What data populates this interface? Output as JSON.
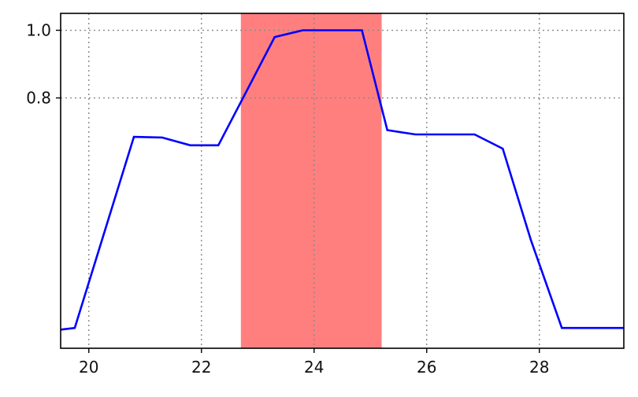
{
  "chart_data": {
    "type": "line",
    "title": "",
    "xlabel": "",
    "ylabel": "",
    "xlim": [
      19.5,
      29.5
    ],
    "ylim": [
      0.06,
      1.05
    ],
    "xticks": [
      20,
      22,
      24,
      26,
      28
    ],
    "xtick_labels": [
      "20",
      "22",
      "24",
      "26",
      "28"
    ],
    "yticks": [
      0.8,
      1.0
    ],
    "ytick_labels": [
      "0.8",
      "1.0"
    ],
    "grid": true,
    "legend": "none",
    "series": [
      {
        "color": "#0000ff",
        "x": [
          19.5,
          19.75,
          20.8,
          21.3,
          21.8,
          22.3,
          22.8,
          23.3,
          23.8,
          24.3,
          24.85,
          25.3,
          25.8,
          26.3,
          26.85,
          27.35,
          27.85,
          28.4,
          28.9,
          29.5
        ],
        "y": [
          0.115,
          0.12,
          0.685,
          0.683,
          0.66,
          0.66,
          0.82,
          0.98,
          1.0,
          1.0,
          1.0,
          0.705,
          0.692,
          0.692,
          0.692,
          0.65,
          0.38,
          0.12,
          0.12,
          0.12
        ]
      }
    ],
    "highlight_band": {
      "x_start": 22.7,
      "x_end": 25.2,
      "color": "#ff7f7f"
    }
  }
}
